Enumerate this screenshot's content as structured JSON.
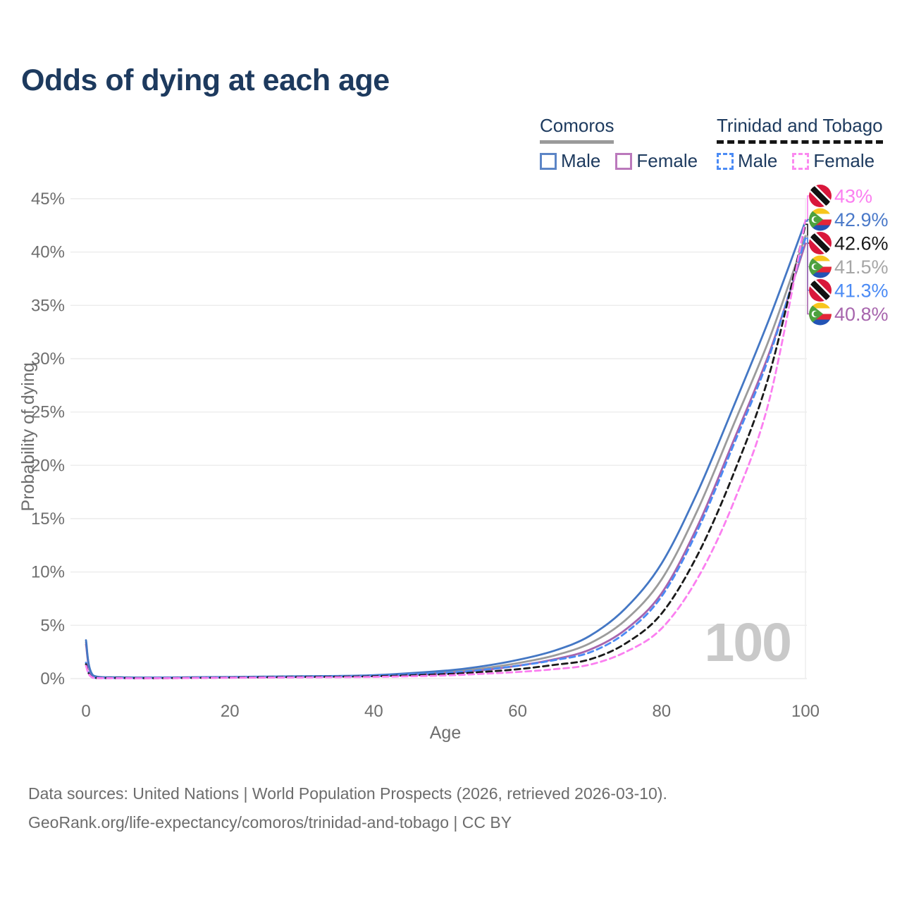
{
  "title": "Odds of dying at each age",
  "watermark": "100",
  "footer": {
    "line1": "Data sources: United Nations | World Population Prospects (2026, retrieved 2026-03-10).",
    "line2": "GeoRank.org/life-expectancy/comoros/trinidad-and-tobago | CC BY"
  },
  "colors": {
    "title_navy": "#1d3a5e",
    "axis_text": "#6e6e6e",
    "gridline": "#ececec",
    "watermark_gray": "#c9c9c9",
    "comoros_male": "#4477c4",
    "comoros_female": "#a765ad",
    "comoros_total": "#9b9b9b",
    "tt_male": "#4b8bf5",
    "tt_female": "#fb7ff0",
    "tt_total": "#1a1a1a"
  },
  "legend": {
    "groups": [
      {
        "country": "Comoros",
        "underline_style": "solid",
        "underline_color": "#9a9a9a",
        "items": [
          {
            "label": "Male",
            "color": "#5c85c6",
            "dashed": false
          },
          {
            "label": "Female",
            "color": "#bb79bc",
            "dashed": false
          }
        ]
      },
      {
        "country": "Trinidad and Tobago",
        "underline_style": "dashed",
        "underline_color": "#151515",
        "items": [
          {
            "label": "Male",
            "color": "#4b8bf5",
            "dashed": true
          },
          {
            "label": "Female",
            "color": "#fb8af0",
            "dashed": true
          }
        ]
      }
    ]
  },
  "chart_data": {
    "type": "line",
    "title": "Odds of dying at each age",
    "xlabel": "Age",
    "ylabel": "Probability of dying",
    "xlim": [
      0,
      100
    ],
    "ylim": [
      0,
      45
    ],
    "x_ticks": [
      0,
      20,
      40,
      60,
      80,
      100
    ],
    "y_ticks": [
      0,
      5,
      10,
      15,
      20,
      25,
      30,
      35,
      40,
      45
    ],
    "y_tick_suffix": "%",
    "grid": "horizontal",
    "legend_position": "top-right",
    "ages": [
      0,
      1,
      5,
      10,
      20,
      30,
      40,
      50,
      55,
      60,
      65,
      70,
      75,
      80,
      85,
      90,
      95,
      100
    ],
    "series": [
      {
        "name": "Comoros",
        "sex": "total",
        "color": "#9b9b9b",
        "dashed": false,
        "values": [
          3.4,
          0.27,
          0.11,
          0.09,
          0.14,
          0.19,
          0.28,
          0.62,
          0.95,
          1.45,
          2.15,
          3.3,
          5.5,
          9.3,
          15.8,
          23.8,
          31.9,
          41.5
        ]
      },
      {
        "name": "Comoros Female",
        "sex": "female",
        "color": "#a765ad",
        "dashed": false,
        "values": [
          3.2,
          0.24,
          0.1,
          0.08,
          0.12,
          0.17,
          0.24,
          0.5,
          0.78,
          1.2,
          1.8,
          2.7,
          4.6,
          8.0,
          14.3,
          22.3,
          30.6,
          40.8
        ]
      },
      {
        "name": "Comoros Male",
        "sex": "male",
        "color": "#4477c4",
        "dashed": false,
        "values": [
          3.6,
          0.3,
          0.12,
          0.1,
          0.16,
          0.22,
          0.32,
          0.75,
          1.15,
          1.75,
          2.6,
          4.0,
          6.6,
          10.8,
          17.5,
          25.5,
          33.8,
          42.9
        ]
      },
      {
        "name": "Trinidad and Tobago Male",
        "sex": "male",
        "color": "#4b8bf5",
        "dashed": true,
        "values": [
          1.5,
          0.09,
          0.05,
          0.05,
          0.13,
          0.19,
          0.28,
          0.55,
          0.82,
          1.2,
          1.72,
          2.45,
          4.3,
          7.7,
          13.9,
          21.9,
          30.3,
          41.3
        ]
      },
      {
        "name": "Trinidad and Tobago",
        "sex": "total",
        "color": "#1a1a1a",
        "dashed": true,
        "values": [
          1.35,
          0.08,
          0.05,
          0.04,
          0.1,
          0.15,
          0.22,
          0.42,
          0.62,
          0.88,
          1.28,
          1.8,
          3.3,
          6.1,
          11.6,
          19.2,
          28.6,
          42.6
        ]
      },
      {
        "name": "Trinidad and Tobago Female",
        "sex": "female",
        "color": "#fb7ff0",
        "dashed": true,
        "values": [
          1.2,
          0.07,
          0.04,
          0.04,
          0.08,
          0.11,
          0.16,
          0.3,
          0.45,
          0.62,
          0.88,
          1.3,
          2.5,
          4.7,
          9.4,
          16.5,
          26.2,
          43.0
        ]
      }
    ],
    "end_labels": [
      {
        "label": "43%",
        "value": 43.0,
        "color": "#fb7ff0",
        "flag": "tt",
        "country": "Trinidad and Tobago",
        "sex": "female"
      },
      {
        "label": "42.9%",
        "value": 42.9,
        "color": "#4a79c9",
        "flag": "km",
        "country": "Comoros",
        "sex": "male"
      },
      {
        "label": "42.6%",
        "value": 42.6,
        "color": "#1a1a1a",
        "flag": "tt",
        "country": "Trinidad and Tobago",
        "sex": "total"
      },
      {
        "label": "41.5%",
        "value": 41.5,
        "color": "#a6a6a6",
        "flag": "km",
        "country": "Comoros",
        "sex": "total"
      },
      {
        "label": "41.3%",
        "value": 41.3,
        "color": "#4b8bf5",
        "flag": "tt",
        "country": "Trinidad and Tobago",
        "sex": "male"
      },
      {
        "label": "40.8%",
        "value": 40.8,
        "color": "#a765ad",
        "flag": "km",
        "country": "Comoros",
        "sex": "female"
      }
    ],
    "flag_colors": {
      "tt_red": "#d9173b",
      "tt_black": "#111111",
      "tt_white": "#ffffff",
      "km_yellow": "#f7c51d",
      "km_white": "#ffffff",
      "km_red": "#e32638",
      "km_blue": "#2253b5",
      "km_green": "#4da13f"
    }
  }
}
